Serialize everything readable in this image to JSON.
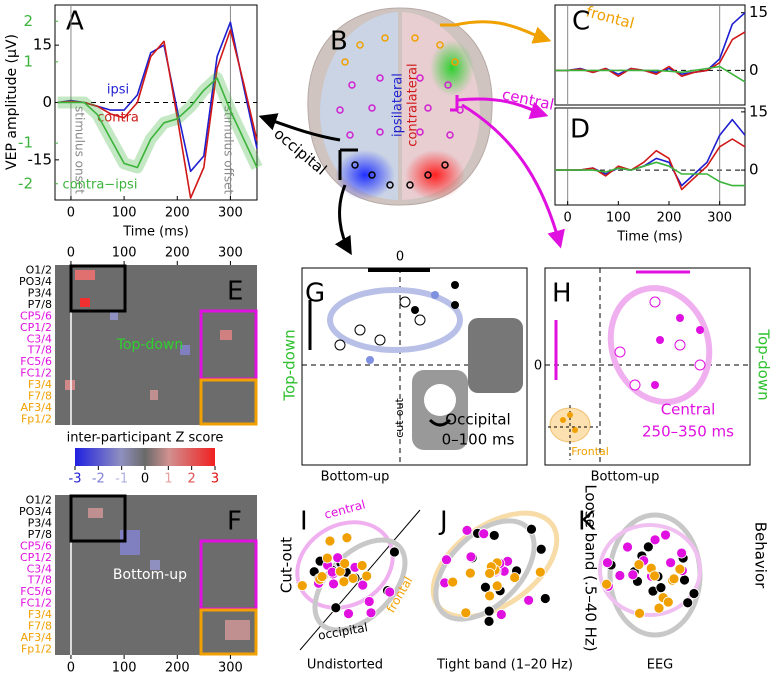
{
  "chart_data": [
    {
      "type": "line",
      "panel": "A",
      "ylabel": "VEP amplitude (μV)",
      "xlabel": "Time (ms)",
      "x": [
        -25,
        0,
        25,
        50,
        75,
        100,
        125,
        150,
        175,
        200,
        225,
        250,
        275,
        300,
        325,
        350
      ],
      "xlim": [
        -30,
        350
      ],
      "xticks": [
        0,
        100,
        200,
        300
      ],
      "ylim": [
        -25.5,
        25.5
      ],
      "yticks": [
        -15,
        0,
        15
      ],
      "y2lim": [
        -2.4,
        2.4
      ],
      "y2ticks": [
        -2,
        -1,
        1,
        2
      ],
      "y2color": "#3cb43c",
      "annotations": [
        "stimulus onset",
        "stimulus offset"
      ],
      "series": [
        {
          "name": "ipsi",
          "color": "#1f1fd0",
          "values": [
            0,
            0.5,
            0,
            -1,
            -2,
            -2,
            2,
            13,
            15,
            -2,
            -18,
            -14,
            12,
            21,
            4,
            -12
          ]
        },
        {
          "name": "contra",
          "color": "#d01818",
          "values": [
            0,
            0.3,
            0,
            -1,
            -3,
            -4,
            0,
            12,
            16,
            -4,
            -25,
            -17,
            9,
            19,
            5,
            -10
          ]
        },
        {
          "name": "contra−ipsi",
          "color": "#3cb43c",
          "axis": "y2",
          "values": [
            0,
            0,
            0,
            -0.3,
            -0.9,
            -1.5,
            -1.6,
            -0.9,
            -0.5,
            -0.4,
            -0.1,
            0.3,
            0.6,
            -0.2,
            -0.9,
            -1.6
          ]
        }
      ]
    },
    {
      "type": "line",
      "panel": "C",
      "x": [
        -25,
        0,
        25,
        50,
        75,
        100,
        125,
        150,
        175,
        200,
        225,
        250,
        275,
        300,
        325,
        350
      ],
      "xlim": [
        -25,
        350
      ],
      "ylim": [
        -9,
        17
      ],
      "yticks": [
        0,
        15
      ],
      "series": [
        {
          "color": "#1f1fd0",
          "values": [
            0,
            0,
            0.5,
            -0.5,
            0.5,
            -1,
            0.5,
            0,
            -0.5,
            0.5,
            -1,
            -0.5,
            0,
            3,
            12,
            15
          ]
        },
        {
          "color": "#d01818",
          "values": [
            0,
            0,
            0.3,
            -0.5,
            0.5,
            -1.5,
            0.5,
            0,
            -1,
            1,
            -1.5,
            -0.5,
            0,
            2,
            8,
            10
          ]
        },
        {
          "color": "#3cb43c",
          "values": [
            0,
            0,
            0,
            0,
            0,
            0,
            0,
            0,
            0,
            -0.2,
            -0.5,
            0,
            0.5,
            1,
            -1,
            -3
          ]
        }
      ]
    },
    {
      "type": "line",
      "panel": "D",
      "xlabel": "Time (ms)",
      "x": [
        -25,
        0,
        25,
        50,
        75,
        100,
        125,
        150,
        175,
        200,
        225,
        250,
        275,
        300,
        325,
        350
      ],
      "xlim": [
        -25,
        350
      ],
      "xticks": [
        0,
        100,
        200,
        300
      ],
      "ylim": [
        -9,
        16
      ],
      "yticks": [
        0,
        15
      ],
      "series": [
        {
          "color": "#1f1fd0",
          "values": [
            0,
            0,
            0,
            0.5,
            -1,
            0.5,
            0,
            1,
            3,
            2,
            -4,
            -1,
            2,
            9,
            13,
            9
          ]
        },
        {
          "color": "#d01818",
          "values": [
            0,
            0,
            0,
            0.5,
            -1.5,
            1,
            0,
            2,
            5,
            3,
            -5,
            -2,
            1,
            6,
            8,
            6
          ]
        },
        {
          "color": "#3cb43c",
          "values": [
            0,
            0,
            0,
            0,
            -0.5,
            0.5,
            0,
            1,
            2,
            1,
            -1,
            -1,
            -1,
            -3,
            -4,
            -4
          ]
        }
      ]
    }
  ],
  "panel_labels": [
    "A",
    "B",
    "C",
    "D",
    "E",
    "F",
    "G",
    "H",
    "I",
    "J",
    "K"
  ],
  "brain": {
    "hemispheres": [
      "ipsilateral",
      "contralateral"
    ],
    "regions": [
      "frontal",
      "central",
      "occipital"
    ]
  },
  "heatmaps": {
    "xlim": [
      -30,
      350
    ],
    "xticks": [
      0,
      100,
      200,
      300
    ],
    "rows": [
      {
        "label": "O1/2",
        "color": "#000000"
      },
      {
        "label": "PO3/4",
        "color": "#000000"
      },
      {
        "label": "P3/4",
        "color": "#000000"
      },
      {
        "label": "P7/8",
        "color": "#000000"
      },
      {
        "label": "CP5/6",
        "color": "#e010e0"
      },
      {
        "label": "CP1/2",
        "color": "#e010e0"
      },
      {
        "label": "C3/4",
        "color": "#e010e0"
      },
      {
        "label": "T7/8",
        "color": "#e010e0"
      },
      {
        "label": "FC5/6",
        "color": "#e010e0"
      },
      {
        "label": "FC1/2",
        "color": "#e010e0"
      },
      {
        "label": "F3/4",
        "color": "#f0a000"
      },
      {
        "label": "F7/8",
        "color": "#f0a000"
      },
      {
        "label": "AF3/4",
        "color": "#f0a000"
      },
      {
        "label": "Fp1/2",
        "color": "#f0a000"
      }
    ],
    "E": "Top-down",
    "F": "Bottom-up",
    "colorbar": {
      "title": "inter-participant Z score",
      "ticks": [
        -3,
        -2,
        -1,
        0,
        1,
        2,
        3
      ],
      "tick_colors": [
        "#2020d0",
        "#8080d8",
        "#b0b0e0",
        "#000000",
        "#e8a0a0",
        "#e05050",
        "#e01010"
      ]
    }
  },
  "G": {
    "title": "Occipital",
    "window": "0–100 ms",
    "stimulus": "cut-out",
    "xlabel": "Bottom-up",
    "ylabel": "Top-down",
    "xtick": 0
  },
  "H": {
    "title": "Central",
    "window": "250–350 ms",
    "group": "Frontal",
    "xlabel": "Bottom-up",
    "ylabel": "Top-down",
    "ytick": 0
  },
  "I": {
    "ylabel": "Cut-out",
    "xlabel": "Undistorted",
    "groups": [
      "central",
      "frontal",
      "occipital"
    ]
  },
  "J": {
    "xlabel": "Tight band (1–20 Hz)",
    "ylabel": "Loose band (.5–40 Hz)"
  },
  "K": {
    "xlabel": "EEG",
    "ylabel": "Behavior"
  }
}
